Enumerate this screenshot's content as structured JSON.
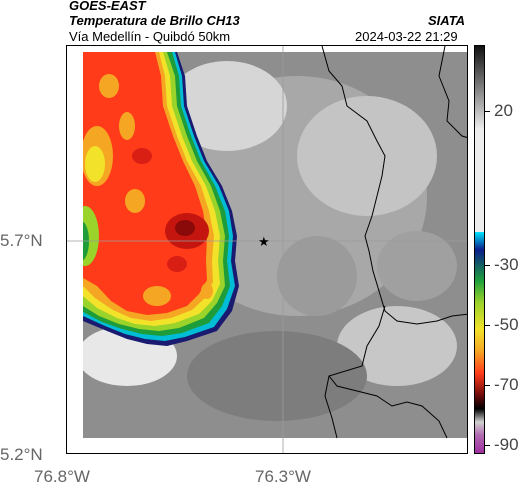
{
  "header": {
    "satellite": "GOES-EAST",
    "product": "Temperatura de Brillo CH13",
    "org": "SIATA",
    "route": "Vía Medellín - Quibdó 50km",
    "datetime": "2024-03-22 21:29"
  },
  "map": {
    "y_ticks": [
      "5.7°N",
      "5.2°N"
    ],
    "x_ticks": [
      "76.8°W",
      "76.3°W"
    ],
    "marker_icon": "star-icon"
  },
  "colorbar": {
    "ticks": [
      "20",
      "-30",
      "-50",
      "-70",
      "-90"
    ]
  }
}
